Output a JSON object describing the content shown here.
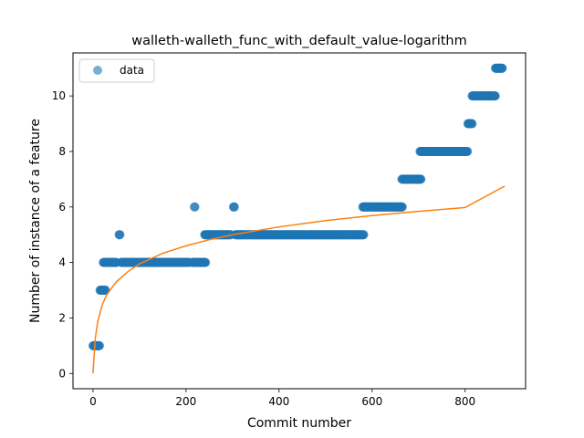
{
  "chart_data": {
    "type": "scatter",
    "title": "walleth-walleth_func_with_default_value-logarithm",
    "xlabel": "Commit number",
    "ylabel": "Number of instance of a feature",
    "xlim": [
      -43,
      930
    ],
    "ylim": [
      -0.55,
      11.55
    ],
    "xticks": [
      0,
      200,
      400,
      600,
      800
    ],
    "yticks": [
      0,
      2,
      4,
      6,
      8,
      10
    ],
    "grid": false,
    "legend": {
      "position": "top-left",
      "entries": [
        "data"
      ]
    },
    "colors": {
      "data": "#1f77b4",
      "fit": "#ff7f0e"
    },
    "series": [
      {
        "name": "data",
        "kind": "scatter",
        "segments": [
          {
            "x_start": 0,
            "x_end": 14,
            "y": 1
          },
          {
            "x_start": 15,
            "x_end": 27,
            "y": 3
          },
          {
            "x_start": 22,
            "x_end": 50,
            "y": 4
          },
          {
            "x_start": 56,
            "x_end": 58,
            "y": 5
          },
          {
            "x_start": 60,
            "x_end": 207,
            "y": 4
          },
          {
            "x_start": 218,
            "x_end": 219,
            "y": 6
          },
          {
            "x_start": 213,
            "x_end": 242,
            "y": 4
          },
          {
            "x_start": 240,
            "x_end": 296,
            "y": 5
          },
          {
            "x_start": 302,
            "x_end": 304,
            "y": 6
          },
          {
            "x_start": 306,
            "x_end": 582,
            "y": 5
          },
          {
            "x_start": 580,
            "x_end": 665,
            "y": 6
          },
          {
            "x_start": 664,
            "x_end": 705,
            "y": 7
          },
          {
            "x_start": 703,
            "x_end": 805,
            "y": 8
          },
          {
            "x_start": 806,
            "x_end": 815,
            "y": 9
          },
          {
            "x_start": 815,
            "x_end": 865,
            "y": 10
          },
          {
            "x_start": 865,
            "x_end": 880,
            "y": 11
          }
        ]
      },
      {
        "kind": "line",
        "model": "logarithmic fit",
        "x": [
          0,
          2,
          5,
          10,
          20,
          30,
          50,
          75,
          100,
          150,
          200,
          250,
          300,
          400,
          500,
          600,
          700,
          800,
          885
        ],
        "y": [
          0.0,
          0.55,
          1.28,
          1.85,
          2.48,
          2.85,
          3.3,
          3.67,
          3.95,
          4.33,
          4.6,
          4.82,
          5.0,
          5.28,
          5.51,
          5.69,
          5.84,
          5.98,
          6.75
        ]
      }
    ]
  }
}
